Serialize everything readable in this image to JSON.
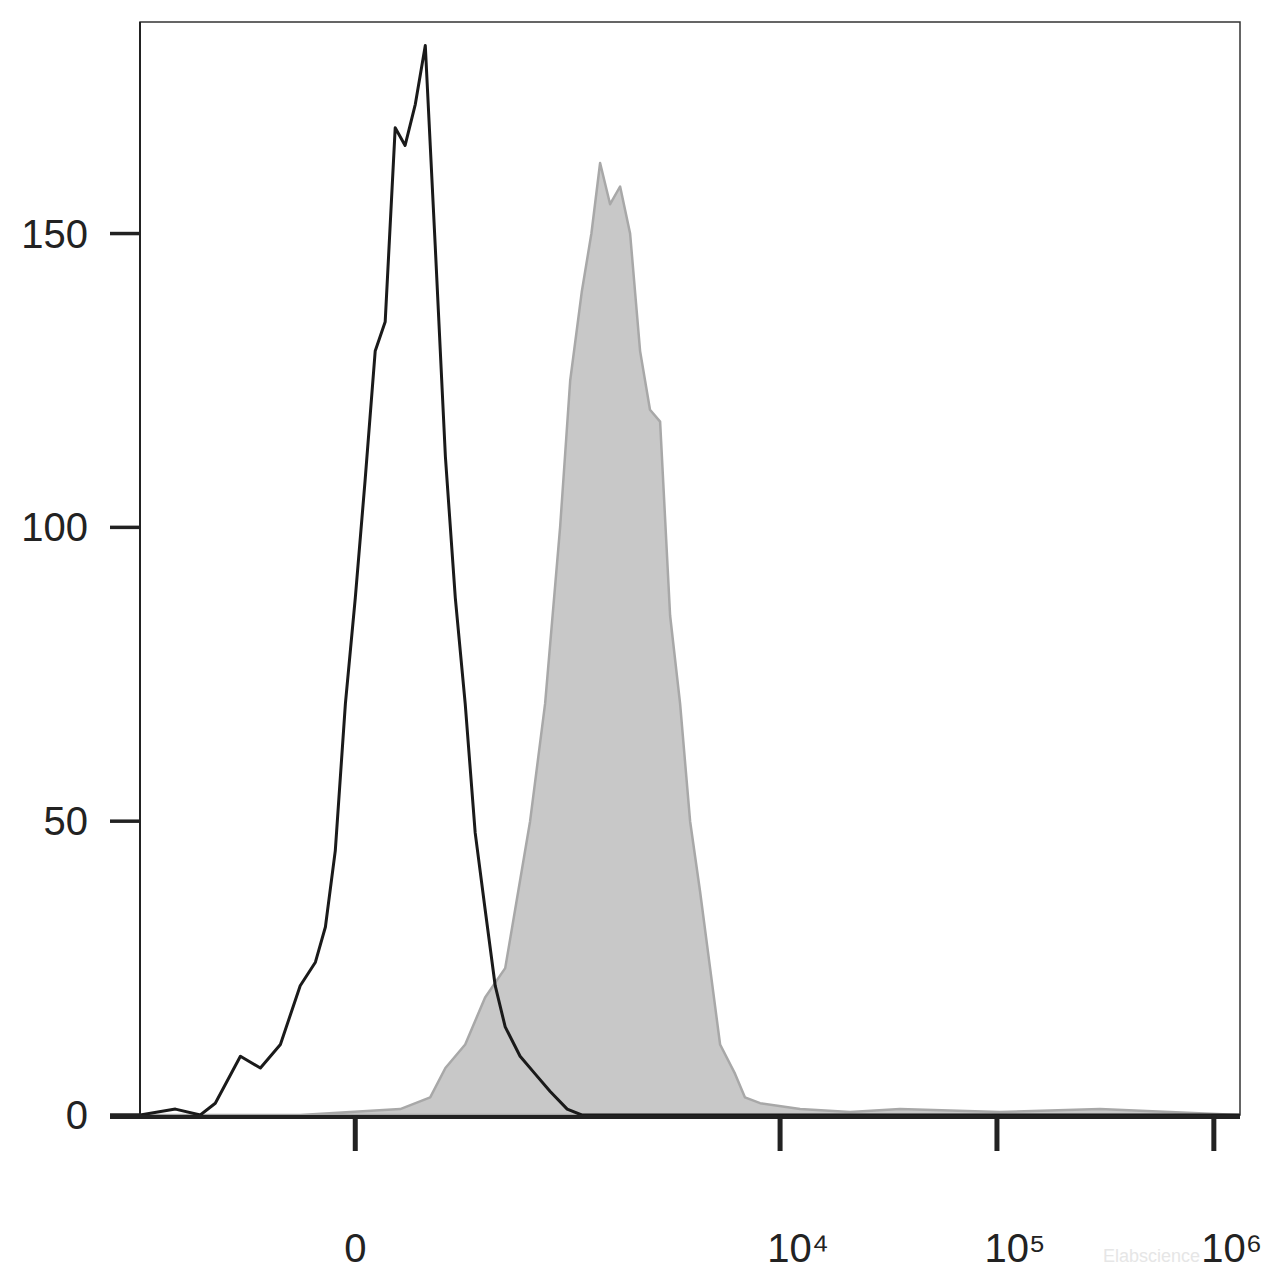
{
  "chart_data": {
    "type": "line",
    "log": "x",
    "xlim": [
      -1070,
      1320000
    ],
    "xticks": [
      0,
      {
        "value": 10000,
        "label": "10⁴"
      },
      {
        "value": 100000,
        "label": "10⁵"
      },
      {
        "value": 1000000,
        "label": "10⁶"
      }
    ],
    "ylim": [
      0,
      186
    ],
    "yticks": [
      0,
      50,
      100,
      150
    ],
    "annotations": [
      "Elabscience"
    ],
    "series": [
      {
        "type": "area",
        "color": "#c8c8c8",
        "x": [
          -1070,
          -136,
          109,
          194,
          244,
          319,
          409,
          518,
          581,
          687,
          811,
          955,
          1066,
          1208,
          1341,
          1472,
          1639,
          1824,
          2029,
          2257,
          2510,
          2794,
          3109,
          3456,
          3846,
          4277,
          4754,
          5287,
          6200,
          6893,
          8090,
          12364,
          21030,
          35730,
          103200,
          298300,
          1320000
        ],
        "values": [
          0,
          0,
          1,
          3,
          8,
          12,
          20,
          25,
          35,
          50,
          70,
          100,
          125,
          140,
          150,
          162,
          155,
          158,
          150,
          130,
          120,
          118,
          85,
          70,
          50,
          38,
          25,
          12,
          7,
          3,
          2,
          1,
          0.5,
          1,
          0.5,
          1,
          0
        ]
      },
      {
        "type": "line",
        "color": "#1a1a1a",
        "x": [
          -1070,
          -726,
          -549,
          -461,
          -340,
          -261,
          -194,
          -136,
          -96,
          -71,
          -47,
          -23,
          0,
          23,
          47,
          71,
          96,
          122,
          150,
          179,
          210,
          244,
          280,
          319,
          362,
          409,
          461,
          518,
          614,
          726,
          857,
          1032,
          1208,
          1320000
        ],
        "values": [
          0,
          1,
          0,
          2,
          10,
          8,
          12,
          22,
          26,
          32,
          45,
          70,
          88,
          108,
          130,
          135,
          168,
          165,
          172,
          182,
          148,
          112,
          88,
          70,
          48,
          35,
          22,
          15,
          10,
          7,
          4,
          1,
          0,
          0
        ]
      }
    ]
  }
}
